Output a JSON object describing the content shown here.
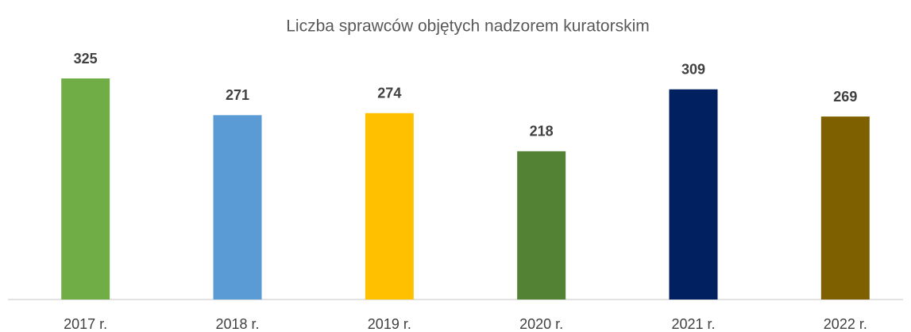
{
  "chart_data": {
    "type": "bar",
    "title": "Liczba sprawców objętych nadzorem kuratorskim",
    "categories": [
      "2017 r.",
      "2018 r.",
      "2019 r.",
      "2020 r.",
      "2021 r.",
      "2022 r."
    ],
    "values": [
      325,
      271,
      274,
      218,
      309,
      269
    ],
    "colors": [
      "#70ad47",
      "#5b9bd5",
      "#ffc000",
      "#548235",
      "#002060",
      "#7f6000"
    ]
  }
}
